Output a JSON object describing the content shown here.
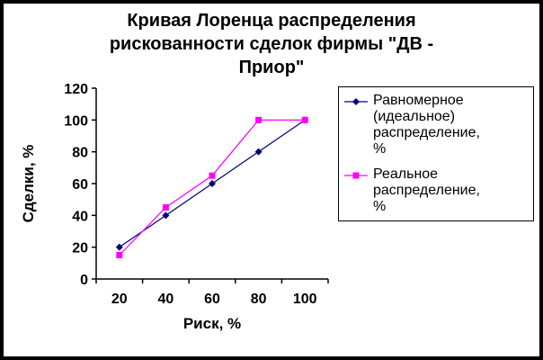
{
  "chart_data": {
    "type": "line",
    "title": "Кривая Лоренца распределения рискованности сделок фирмы \"ДВ - Приор\"",
    "title_lines": [
      "Кривая Лоренца распределения",
      "рискованности сделок фирмы \"ДВ -",
      "Приор\""
    ],
    "xlabel": "Риск, %",
    "ylabel": "Сделки, %",
    "categories": [
      20,
      40,
      60,
      80,
      100
    ],
    "series": [
      {
        "name": "Равномерное (идеальное) распределение, %",
        "values": [
          20,
          40,
          60,
          80,
          100
        ],
        "color": "#000080",
        "marker": "diamond"
      },
      {
        "name": "Реальное распределение, %",
        "values": [
          15,
          45,
          65,
          100,
          100
        ],
        "color": "#FF00FF",
        "marker": "square"
      }
    ],
    "ylim": [
      0,
      120
    ],
    "ytick_step": 20,
    "grid": false,
    "legend_position": "right",
    "axis_color": "#000000",
    "background_color": "#FFFFFF",
    "border_color": "#000000"
  }
}
